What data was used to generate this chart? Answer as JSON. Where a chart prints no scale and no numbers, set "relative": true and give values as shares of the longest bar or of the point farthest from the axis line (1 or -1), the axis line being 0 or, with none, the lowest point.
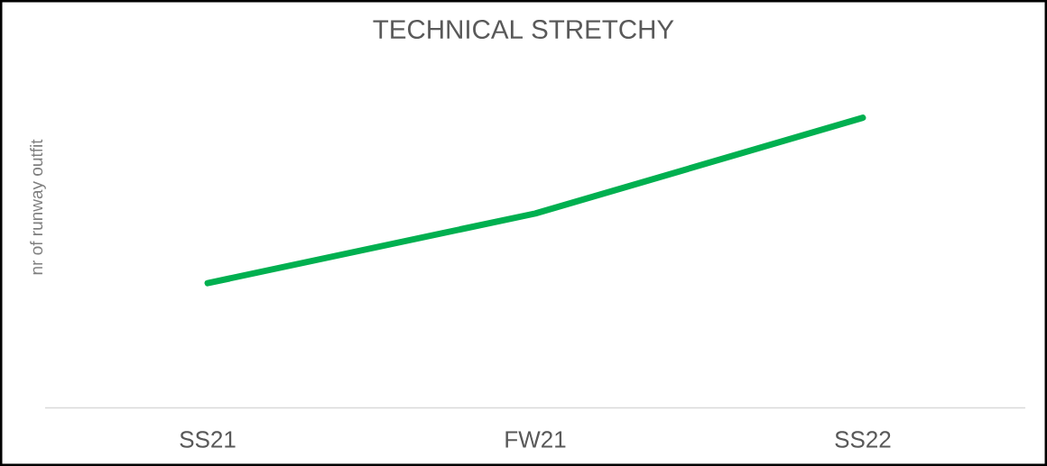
{
  "chart_data": {
    "type": "line",
    "title": "TECHNICAL STRETCHY",
    "ylabel": "nr of runway outfit",
    "categories": [
      "SS21",
      "FW21",
      "SS22"
    ],
    "values": [
      0.43,
      0.67,
      1
    ],
    "color": "#00b050",
    "relative": true,
    "marker": "none",
    "line_style": "solid"
  }
}
